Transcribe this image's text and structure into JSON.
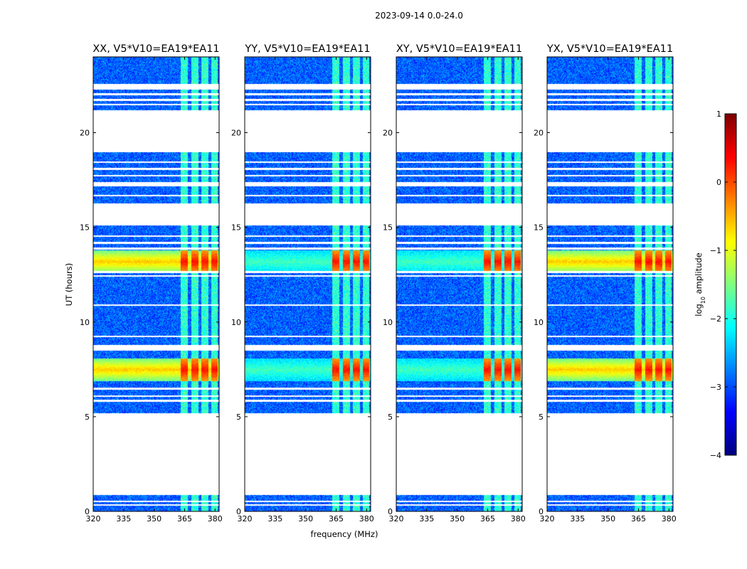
{
  "figure": {
    "suptitle": "2023-09-14 0.0-24.0"
  },
  "chart_data": {
    "type": "heatmap",
    "title": "2023-09-14 0.0-24.0",
    "xlabel": "frequency (MHz)",
    "ylabel": "UT (hours)",
    "xlim": [
      320,
      382
    ],
    "ylim": [
      0,
      24
    ],
    "x_ticks": [
      320,
      335,
      350,
      365,
      380
    ],
    "x_tick_labels": [
      "320",
      "335",
      "350",
      "365",
      "380"
    ],
    "y_ticks": [
      0,
      5,
      10,
      15,
      20
    ],
    "y_tick_labels": [
      "0",
      "5",
      "10",
      "15",
      "20"
    ],
    "colorbar": {
      "label": "log",
      "label_sub": "10",
      "label_rest": " amplitude",
      "range": [
        -4,
        1
      ],
      "ticks": [
        1,
        0,
        -1,
        -2,
        -3,
        -4
      ],
      "tick_labels": [
        "1",
        "0",
        "−1",
        "−2",
        "−3",
        "−4"
      ],
      "colormap": "jet"
    },
    "panels": [
      {
        "title": "XX, V5*V10=EA19*EA11",
        "strong_low_freq_rfi": true
      },
      {
        "title": "YY, V5*V10=EA19*EA11",
        "strong_low_freq_rfi": false
      },
      {
        "title": "XY, V5*V10=EA19*EA11",
        "strong_low_freq_rfi": false
      },
      {
        "title": "YX, V5*V10=EA19*EA11",
        "strong_low_freq_rfi": true
      }
    ],
    "data_segments_ut": [
      [
        0.0,
        0.9
      ],
      [
        5.2,
        5.8
      ],
      [
        5.9,
        8.5
      ],
      [
        8.8,
        12.6
      ],
      [
        12.7,
        15.1
      ],
      [
        16.3,
        17.2
      ],
      [
        17.4,
        19.0
      ],
      [
        21.2,
        22.3
      ],
      [
        22.6,
        24.0
      ]
    ],
    "gap_lines_ut": [
      0.35,
      0.55,
      6.1,
      6.5,
      8.65,
      9.25,
      10.9,
      12.45,
      13.9,
      14.2,
      14.55,
      16.7,
      17.75,
      18.1,
      18.45,
      21.5,
      21.75,
      22.05
    ],
    "rfi_bands_mhz": [
      [
        363,
        366.5
      ],
      [
        368,
        371.5
      ],
      [
        373,
        376.5
      ],
      [
        378,
        381
      ]
    ],
    "burst_intervals_ut": [
      [
        12.6,
        13.8
      ],
      [
        6.9,
        8.1
      ]
    ],
    "background_log_amp": -2.9,
    "band_log_amp": -1.9,
    "burst_peak_log_amp": 0.2
  }
}
